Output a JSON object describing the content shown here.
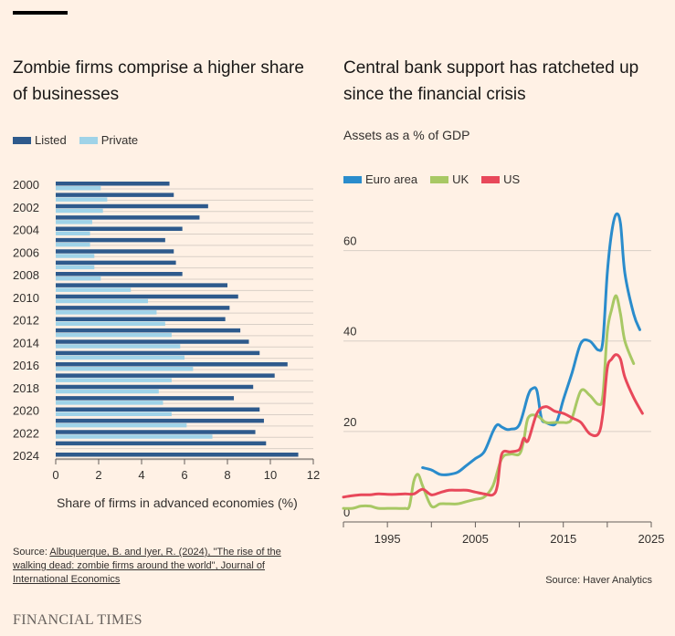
{
  "titles": {
    "left": "Zombie firms comprise a higher share of businesses",
    "right": "Central bank support has ratcheted up since the financial crisis"
  },
  "right_subtitle": "Assets as a % of GDP",
  "colors": {
    "listed": "#2e5a8c",
    "private": "#9fd3e8",
    "euro": "#2a8ccc",
    "uk": "#a8c864",
    "us": "#e8485a",
    "background": "#fff1e5",
    "grid": "#d9cfc6"
  },
  "source_left": {
    "prefix": "Source: ",
    "link": "Albuquerque, B. and Iyer, R. (2024), \"The rise of the walking dead: zombie firms around the world\", Journal of International Economics"
  },
  "source_right": "Source: Haver Analytics",
  "brand": "FINANCIAL TIMES",
  "chart_data": [
    {
      "type": "bar",
      "orientation": "horizontal",
      "title": "Zombie firms comprise a higher share of businesses",
      "xlabel": "Share of firms in advanced economies (%)",
      "xlim": [
        0,
        12
      ],
      "xticks": [
        0,
        2,
        4,
        6,
        8,
        10,
        12
      ],
      "legend_position": "top-left",
      "categories": [
        "2000",
        "2001",
        "2002",
        "2003",
        "2004",
        "2005",
        "2006",
        "2007",
        "2008",
        "2009",
        "2010",
        "2011",
        "2012",
        "2013",
        "2014",
        "2015",
        "2016",
        "2017",
        "2018",
        "2019",
        "2020",
        "2021",
        "2022",
        "2023",
        "2024"
      ],
      "ytick_labels": [
        "2000",
        "2002",
        "2004",
        "2006",
        "2008",
        "2010",
        "2012",
        "2014",
        "2016",
        "2018",
        "2020",
        "2022",
        "2024"
      ],
      "series": [
        {
          "name": "Listed",
          "values": [
            5.3,
            5.5,
            7.1,
            6.7,
            5.9,
            5.1,
            5.5,
            5.6,
            5.9,
            8.0,
            8.5,
            8.1,
            7.9,
            8.6,
            9.0,
            9.5,
            10.8,
            10.2,
            9.2,
            8.3,
            9.5,
            9.7,
            9.3,
            9.8,
            11.3
          ]
        },
        {
          "name": "Private",
          "values": [
            2.1,
            2.4,
            2.2,
            1.7,
            1.6,
            1.6,
            1.8,
            1.8,
            2.1,
            3.5,
            4.3,
            4.7,
            5.1,
            5.4,
            5.8,
            6.0,
            6.4,
            5.4,
            4.8,
            5.0,
            5.4,
            6.1,
            7.3,
            null,
            null
          ]
        }
      ]
    },
    {
      "type": "line",
      "title": "Central bank support has ratcheted up since the financial crisis",
      "ylabel": "Assets as a % of GDP",
      "xlim": [
        1990,
        2025
      ],
      "ylim": [
        0,
        70
      ],
      "xticks": [
        1995,
        2005,
        2015,
        2025
      ],
      "yticks": [
        0,
        20,
        40,
        60
      ],
      "legend_position": "top-left",
      "series": [
        {
          "name": "Euro area",
          "color_key": "euro",
          "x": [
            1999,
            2000,
            2001,
            2002,
            2003,
            2004,
            2005,
            2006,
            2007,
            2007.5,
            2008,
            2008.5,
            2009,
            2010,
            2011,
            2011.5,
            2012,
            2012.5,
            2013,
            2014,
            2014.5,
            2015,
            2016,
            2017,
            2018,
            2019,
            2019.5,
            2020,
            2020.5,
            2021,
            2021.5,
            2022,
            2023,
            2023.7
          ],
          "y": [
            12,
            11.5,
            10.5,
            10.5,
            11,
            12.5,
            14,
            15.5,
            20,
            21.5,
            21,
            20.5,
            20.5,
            21.5,
            28,
            29.5,
            29,
            23,
            22,
            21.5,
            23.5,
            27,
            33,
            39.5,
            40,
            38,
            40,
            55,
            64,
            68,
            66,
            55,
            46,
            42.5
          ]
        },
        {
          "name": "UK",
          "color_key": "uk",
          "x": [
            1990,
            1991,
            1992,
            1993,
            1994,
            1995,
            1996,
            1997,
            1997.5,
            1998,
            1998.5,
            1999,
            2000,
            2001,
            2002,
            2003,
            2004,
            2005,
            2006,
            2007,
            2008,
            2009,
            2010,
            2010.5,
            2011,
            2012,
            2013,
            2014,
            2015,
            2015.5,
            2016,
            2017,
            2018,
            2019,
            2019.5,
            2020,
            2020.5,
            2021,
            2021.5,
            2022,
            2023
          ],
          "y": [
            3,
            3,
            3.5,
            3.5,
            3,
            3,
            3,
            3,
            3.5,
            9,
            10.5,
            8,
            3.5,
            4,
            4,
            4,
            4.5,
            5,
            5.5,
            8,
            14,
            15,
            15,
            18,
            23,
            23.5,
            22,
            22,
            22,
            22,
            23,
            29,
            28,
            26,
            28,
            42,
            47,
            50,
            46,
            40,
            35
          ]
        },
        {
          "name": "US",
          "color_key": "us",
          "x": [
            1990,
            1991,
            1992,
            1993,
            1994,
            1995,
            1996,
            1997,
            1998,
            1999,
            2000,
            2001,
            2002,
            2003,
            2004,
            2005,
            2006,
            2007,
            2007.5,
            2008,
            2009,
            2010,
            2010.5,
            2011,
            2012,
            2013,
            2014,
            2015,
            2016,
            2017,
            2018,
            2019,
            2019.5,
            2020,
            2020.5,
            2021,
            2021.5,
            2022,
            2023,
            2024
          ],
          "y": [
            5.5,
            5.8,
            6,
            6,
            6.2,
            6.1,
            6.1,
            6.2,
            6.2,
            7.2,
            6,
            6.5,
            7,
            7,
            7,
            6.6,
            6.2,
            6,
            8,
            15,
            15.5,
            16,
            18.5,
            18,
            24,
            25.5,
            24.5,
            24,
            23,
            22,
            19.5,
            19.5,
            24,
            34,
            36,
            37,
            36,
            32,
            27.5,
            24
          ]
        }
      ]
    }
  ]
}
